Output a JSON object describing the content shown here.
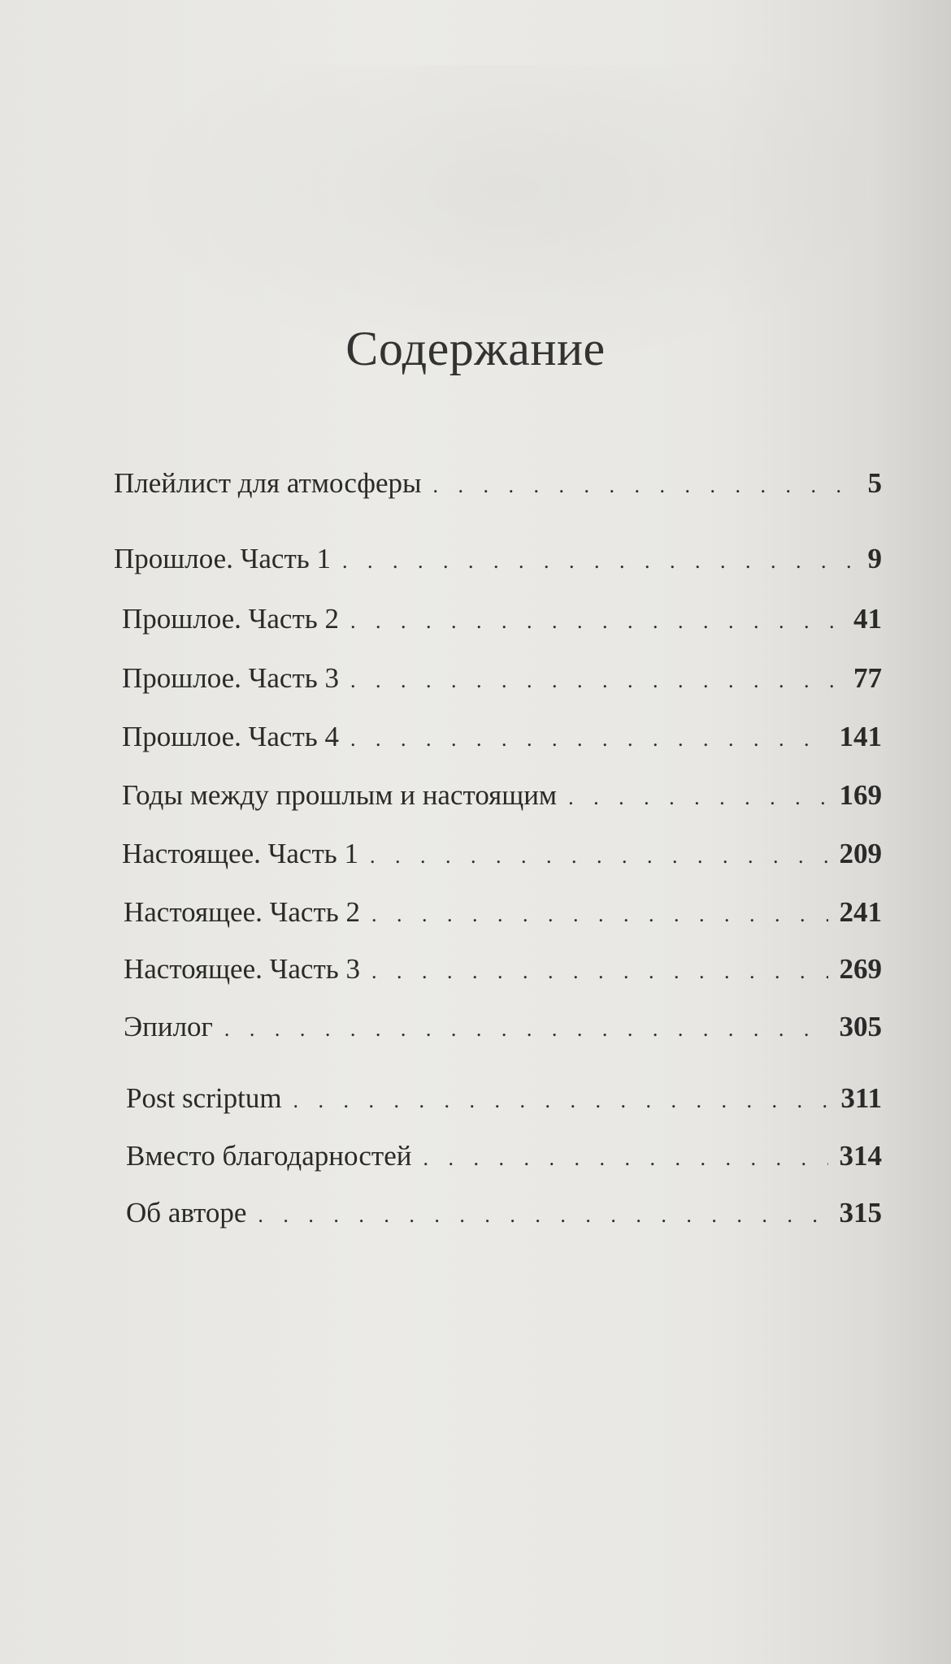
{
  "title": "Содержание",
  "toc": [
    {
      "label": "Плейлист для атмосферы",
      "page": "5"
    },
    {
      "label": "Прошлое. Часть 1",
      "page": "9"
    },
    {
      "label": "Прошлое. Часть 2",
      "page": "41"
    },
    {
      "label": "Прошлое. Часть 3",
      "page": "77"
    },
    {
      "label": "Прошлое. Часть 4",
      "page": "141"
    },
    {
      "label": "Годы между прошлым и настоящим",
      "page": "169"
    },
    {
      "label": "Настоящее. Часть 1",
      "page": "209"
    },
    {
      "label": "Настоящее. Часть 2",
      "page": "241"
    },
    {
      "label": "Настоящее. Часть 3",
      "page": "269"
    },
    {
      "label": "Эпилог",
      "page": "305"
    },
    {
      "label": "Post scriptum",
      "page": "311"
    },
    {
      "label": "Вместо благодарностей",
      "page": "314"
    },
    {
      "label": "Об авторе",
      "page": "315"
    }
  ]
}
